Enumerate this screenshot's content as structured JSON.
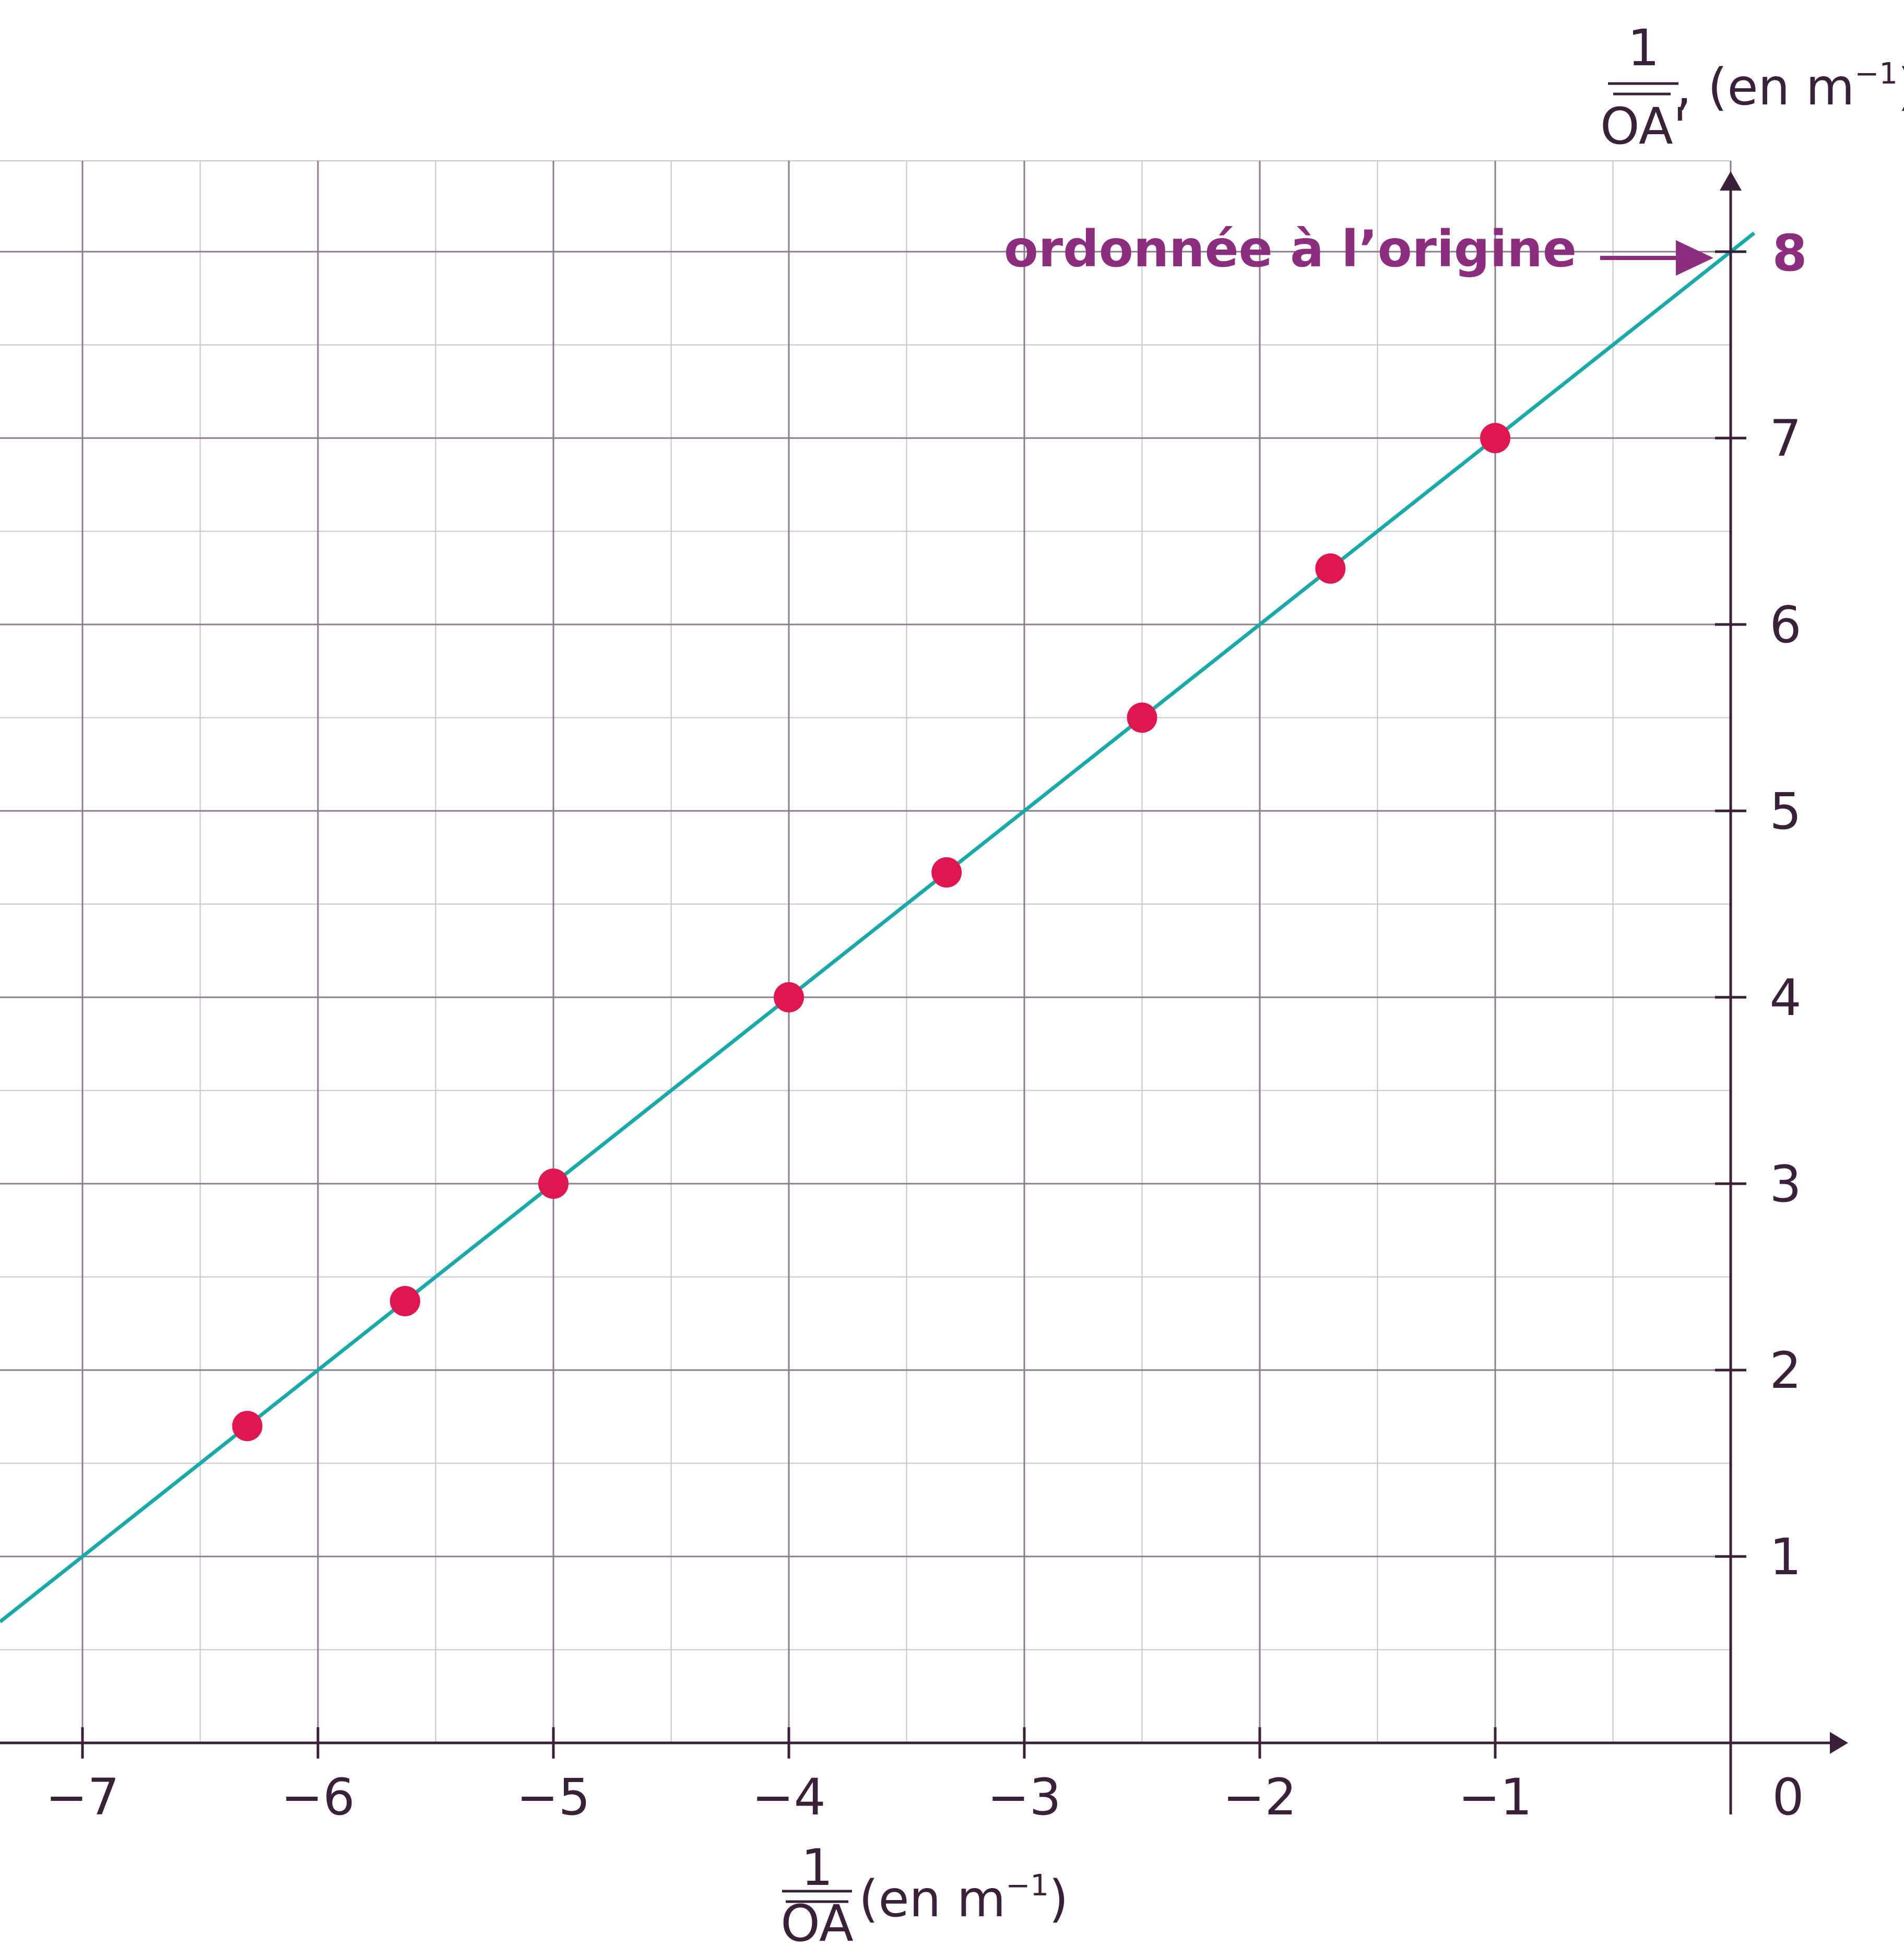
{
  "chart_data": {
    "type": "scatter",
    "x_axis": {
      "range": [
        -7.35,
        0
      ],
      "ticks": [
        -7,
        -6,
        -5,
        -4,
        -3,
        -2,
        -1
      ],
      "tick_labels": [
        "−7",
        "−6",
        "−5",
        "−4",
        "−3",
        "−2",
        "−1"
      ],
      "origin_label": "0",
      "label_numerator": "1",
      "label_denominator": "OA",
      "label_unit": "(en m",
      "label_unit_exponent": "−1",
      "label_unit_close": ")"
    },
    "y_axis": {
      "range": [
        0,
        8.5
      ],
      "ticks": [
        1,
        2,
        3,
        4,
        5,
        6,
        7
      ],
      "tick_labels": [
        "1",
        "2",
        "3",
        "4",
        "5",
        "6",
        "7"
      ],
      "highlight_tick": 8,
      "highlight_tick_label": "8",
      "label_numerator": "1",
      "label_denominator": "OA'",
      "label_unit": ", (en m",
      "label_unit_exponent": "−1",
      "label_unit_close": ")"
    },
    "grid": {
      "major_step": 1,
      "minor_step": 0.5,
      "visible": true
    },
    "points": {
      "x": [
        -6.3,
        -5.63,
        -5.0,
        -4.0,
        -3.33,
        -2.5,
        -1.7,
        -1.0
      ],
      "y": [
        1.7,
        2.37,
        3.0,
        4.0,
        4.67,
        5.5,
        6.3,
        7.0
      ]
    },
    "fit_line": {
      "slope": 1,
      "intercept": 8,
      "x_range": [
        -7.35,
        0.1
      ]
    },
    "annotation": {
      "text": "ordonnée à l’origine",
      "target_y": 8
    },
    "colors": {
      "points": "#e01650",
      "line": "#1aa9a9",
      "annotation": "#8c2d7e",
      "axes": "#3a2038",
      "grid_major": "#8a7d8a",
      "grid_minor": "#c9c3c9"
    }
  }
}
